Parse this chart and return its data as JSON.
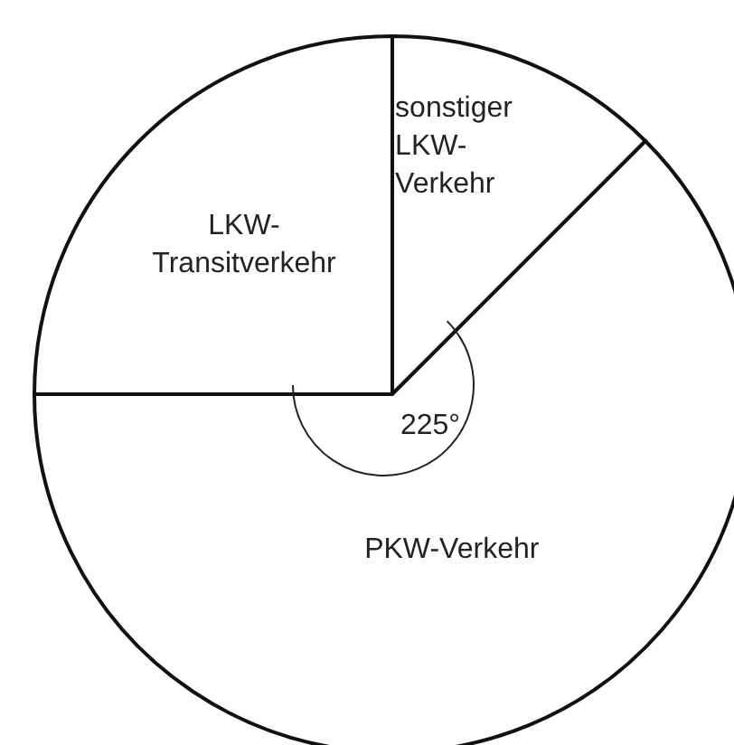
{
  "chart_data": {
    "type": "pie",
    "categories": [
      "sonstiger LKW-Verkehr",
      "LKW-Transitverkehr",
      "PKW-Verkehr"
    ],
    "values": [
      12.5,
      25,
      62.5
    ],
    "colors": [
      "#ffffff",
      "#ffffff",
      "#ffffff"
    ],
    "annotations": [
      "225°"
    ]
  }
}
